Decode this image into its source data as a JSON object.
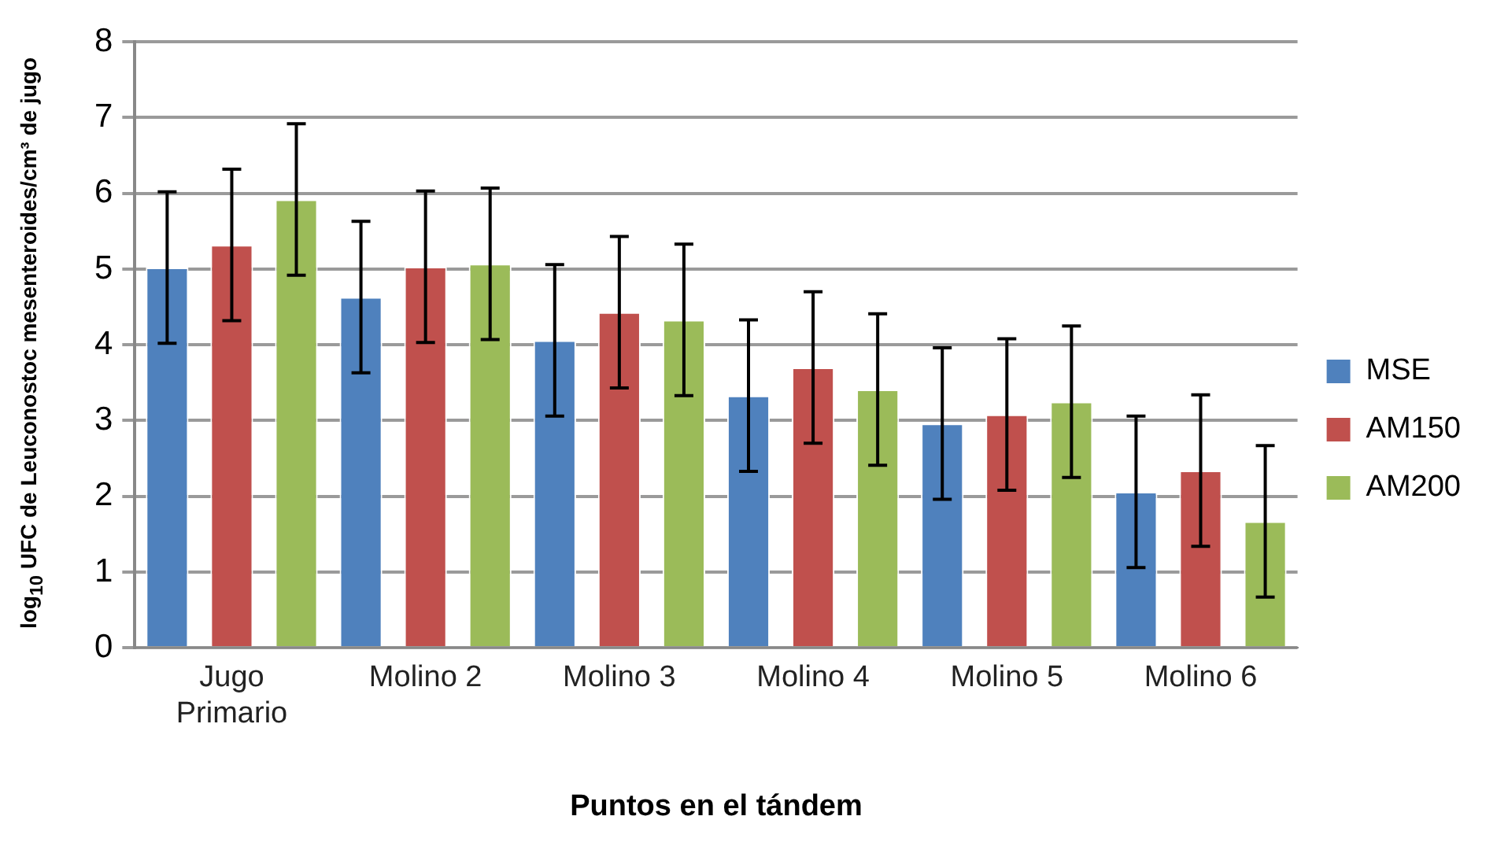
{
  "chart_data": {
    "type": "bar",
    "xlabel": "Puntos en el tándem",
    "ylabel": "log$_{10}$ UFC de Leuconostoc mesenteroides/cm³ de jugo",
    "categories": [
      "Jugo Primario",
      "Molino 2",
      "Molino 3",
      "Molino 4",
      "Molino 5",
      "Molino 6"
    ],
    "series": [
      {
        "name": "MSE",
        "color": "#4f81bd",
        "values": [
          5.02,
          4.63,
          4.06,
          3.33,
          2.96,
          2.06
        ],
        "errors": [
          1,
          1,
          1,
          1,
          1,
          1
        ]
      },
      {
        "name": "AM150",
        "color": "#c0504d",
        "values": [
          5.32,
          5.03,
          4.43,
          3.7,
          3.08,
          2.34
        ],
        "errors": [
          1,
          1,
          1,
          1,
          1,
          1
        ]
      },
      {
        "name": "AM200",
        "color": "#9bbb59",
        "values": [
          5.92,
          5.07,
          4.33,
          3.41,
          3.25,
          1.67
        ],
        "errors": [
          1,
          1,
          1,
          1,
          1,
          1
        ]
      }
    ],
    "ylim": [
      0,
      8
    ],
    "yticks": [
      0,
      1,
      2,
      3,
      4,
      5,
      6,
      7,
      8
    ],
    "grid": "y",
    "legend": "right"
  }
}
